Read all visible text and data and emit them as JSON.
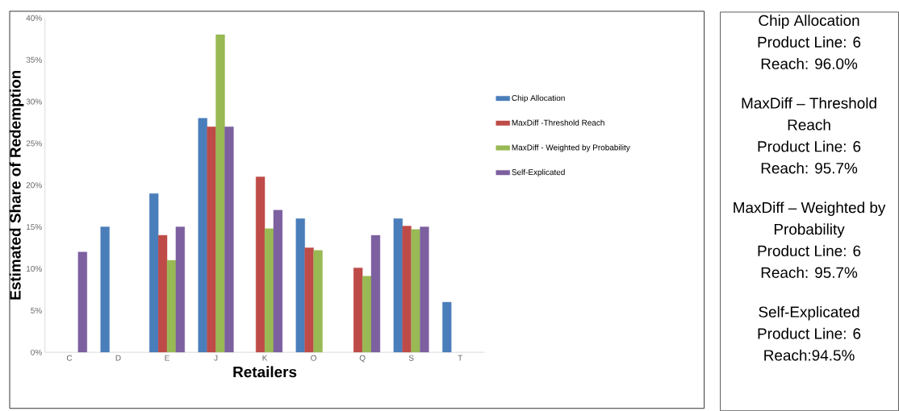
{
  "chart_data": [
    {
      "type": "bar",
      "xlabel": "Retailers",
      "ylabel": "Estimated Share of Redemption",
      "categories": [
        "C",
        "D",
        "E",
        "J",
        "K",
        "O",
        "Q",
        "S",
        "T"
      ],
      "series": [
        {
          "name": "Chip Allocation",
          "color": "#4a7ebb",
          "values": [
            null,
            15,
            19,
            28,
            null,
            16,
            null,
            16,
            6
          ]
        },
        {
          "name": "MaxDiff -Threshold Reach",
          "color": "#be4b48",
          "values": [
            null,
            null,
            14,
            27,
            21,
            12.5,
            10.1,
            15.1,
            null
          ]
        },
        {
          "name": "MaxDiff - Weighted by Probability",
          "color": "#98b954",
          "values": [
            null,
            null,
            11,
            38,
            14.8,
            12.2,
            9.1,
            14.7,
            null
          ]
        },
        {
          "name": "Self-Explicated",
          "color": "#7d60a0",
          "values": [
            12,
            null,
            15,
            27,
            17,
            null,
            14,
            15,
            null
          ]
        }
      ],
      "ylim": [
        0,
        40
      ],
      "yticks": [
        {
          "value": 0,
          "label": "0%"
        },
        {
          "value": 5,
          "label": "5%"
        },
        {
          "value": 10,
          "label": "10%"
        },
        {
          "value": 15,
          "label": "15%"
        },
        {
          "value": 20,
          "label": "20%"
        },
        {
          "value": 25,
          "label": "25%"
        },
        {
          "value": 30,
          "label": "30%"
        },
        {
          "value": 35,
          "label": "35%"
        },
        {
          "value": 40,
          "label": "40%"
        }
      ],
      "grid": false,
      "legend": "right"
    },
    {
      "type": "other",
      "annotations": [
        "Chip Allocation",
        "Product Line: 6",
        "Reach: 96.0%",
        "MaxDiff – Threshold Reach",
        "Product Line: 6",
        "Reach: 95.7%",
        "MaxDiff – Weighted by Probability",
        "Product Line: 6",
        "Reach: 95.7%",
        "Self-Explicated",
        "Product Line: 6",
        "Reach:94.5%"
      ]
    }
  ]
}
